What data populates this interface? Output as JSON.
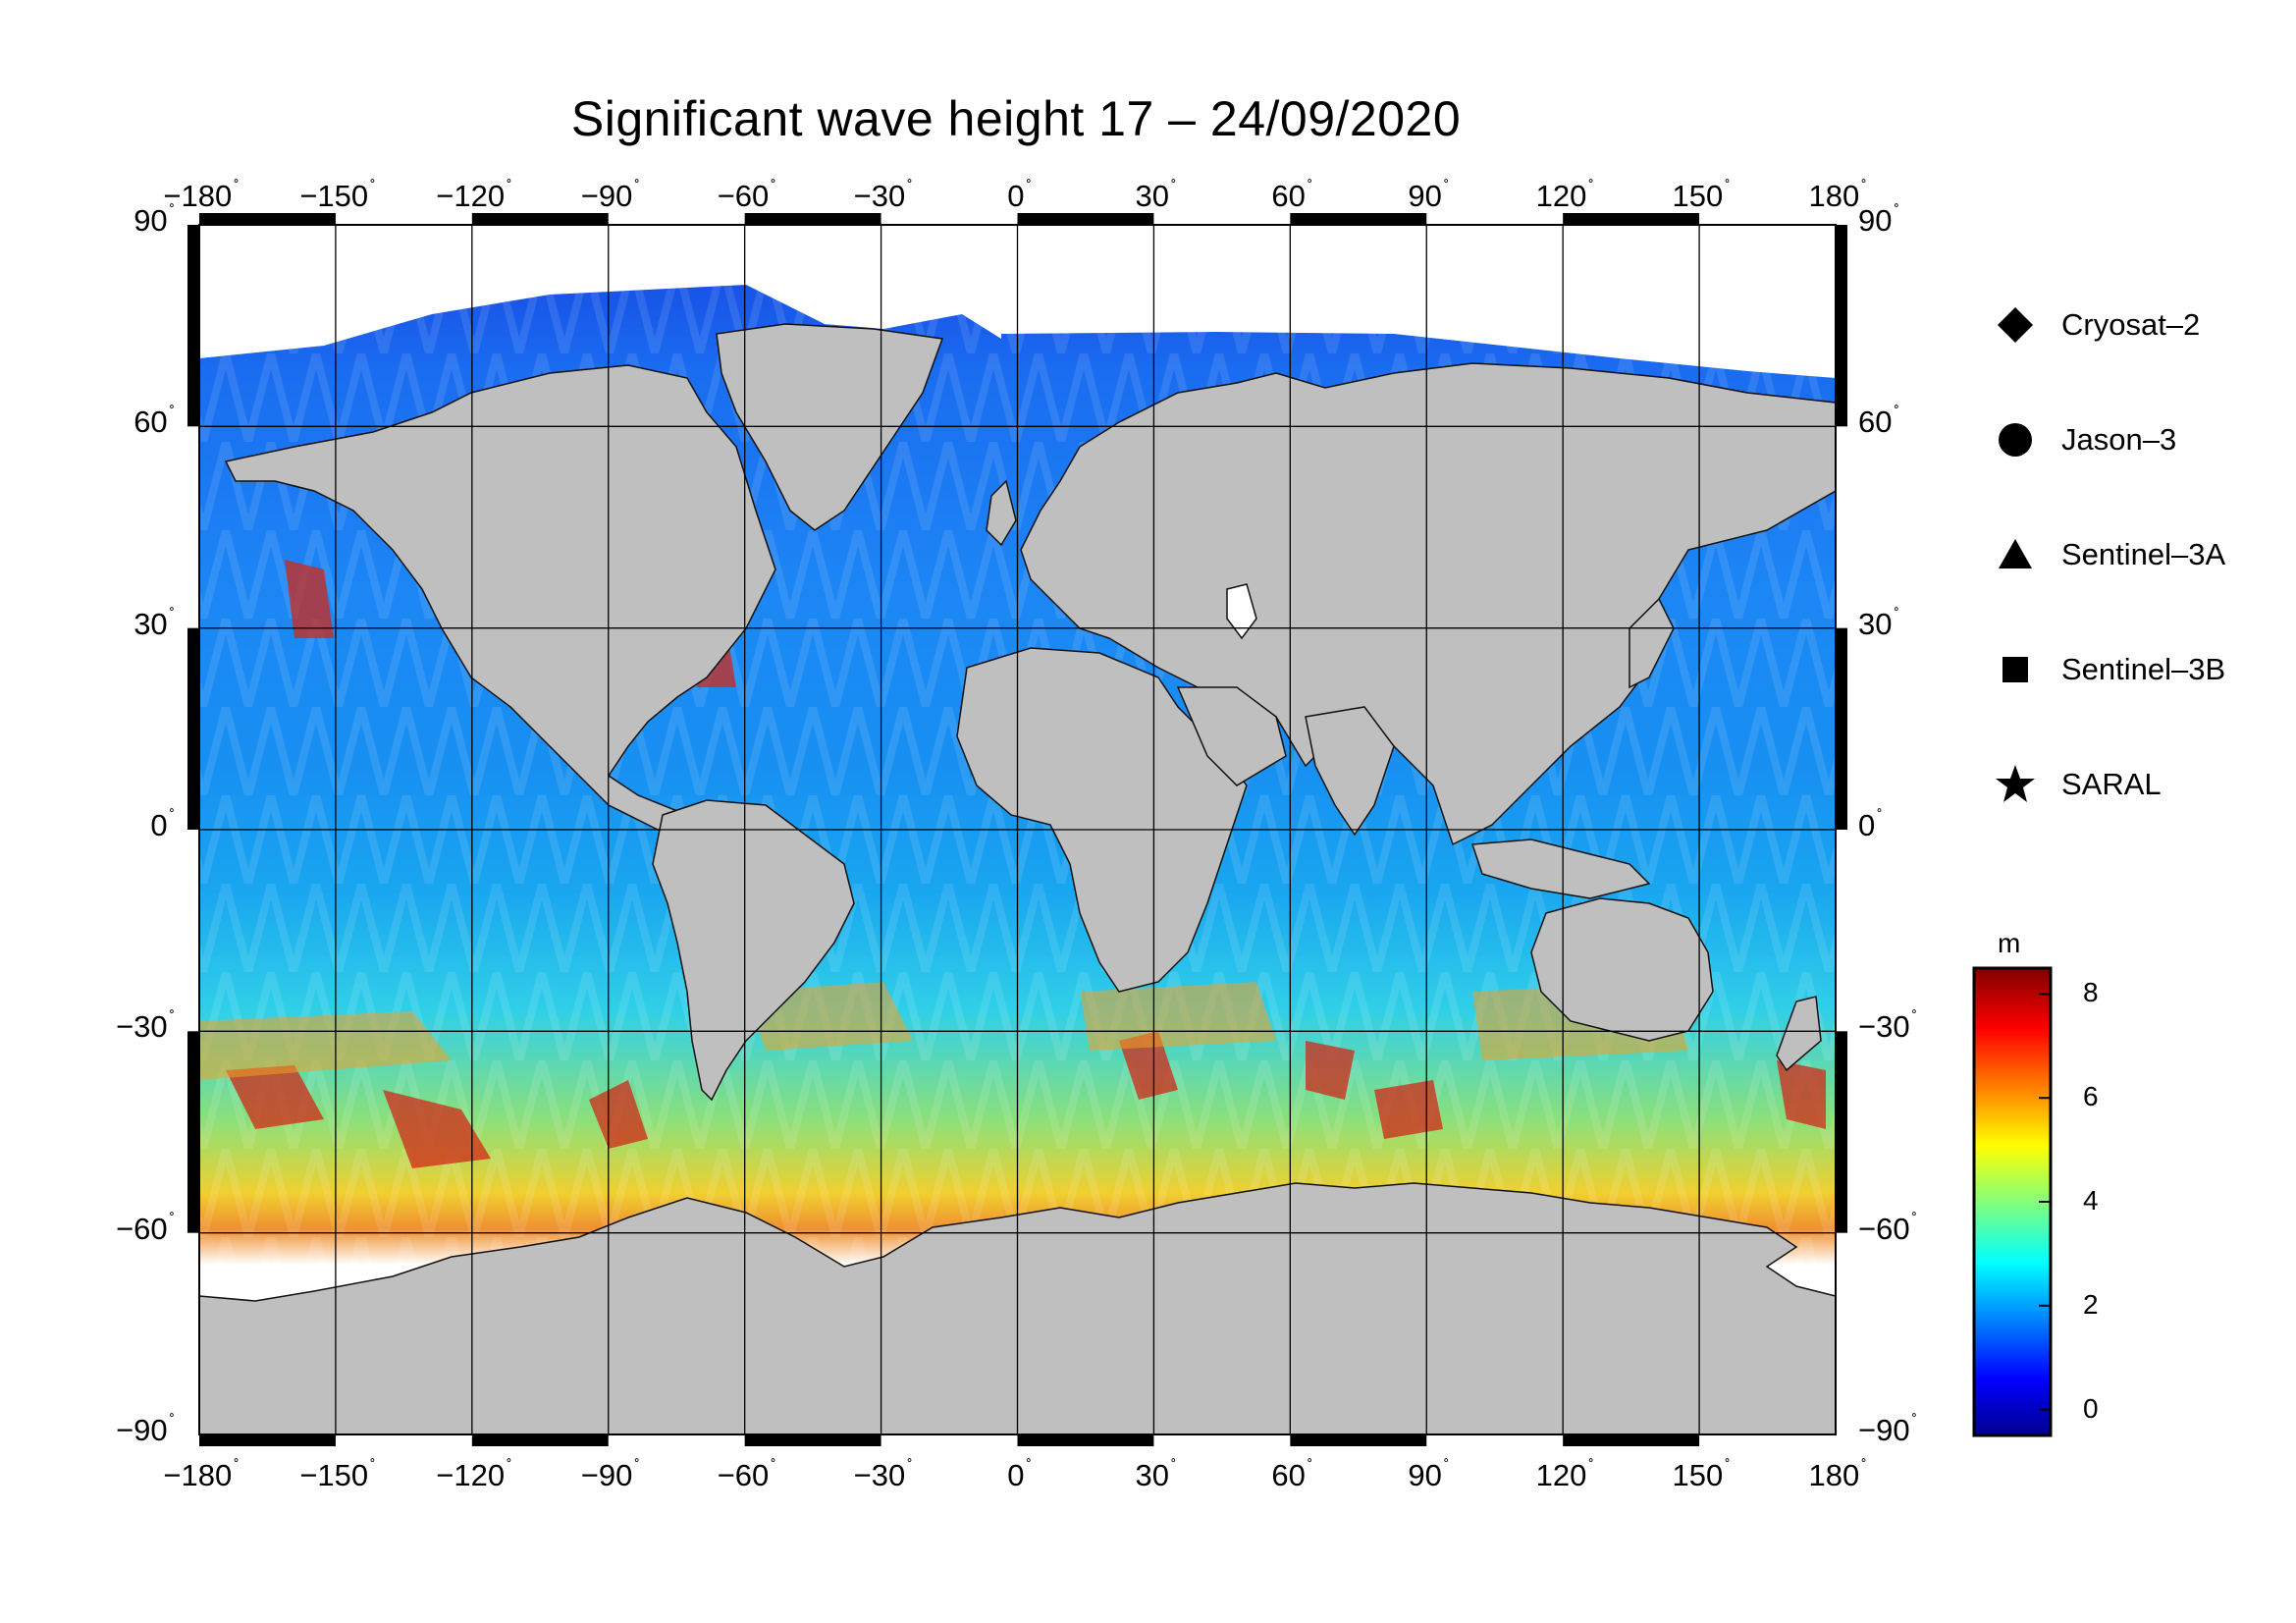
{
  "title": "Significant wave height 17 – 24/09/2020",
  "map": {
    "lon_ticks": [
      "−180",
      "−150",
      "−120",
      "−90",
      "−60",
      "−30",
      "0",
      "30",
      "60",
      "90",
      "120",
      "150",
      "180"
    ],
    "lat_ticks": [
      "90",
      "60",
      "30",
      "0",
      "−30",
      "−60",
      "−90"
    ],
    "degree_symbol": "˚",
    "land_color": "#bfbfbf",
    "ice_color": "#ffffff",
    "projection": "equirectangular",
    "graticule_spacing_deg": 30
  },
  "legend": {
    "items": [
      {
        "symbol": "diamond-icon",
        "label": "Cryosat–2"
      },
      {
        "symbol": "circle-icon",
        "label": "Jason–3"
      },
      {
        "symbol": "triangle-icon",
        "label": "Sentinel–3A"
      },
      {
        "symbol": "square-icon",
        "label": "Sentinel–3B"
      },
      {
        "symbol": "star-icon",
        "label": "SARAL"
      }
    ]
  },
  "colorbar": {
    "unit": "m",
    "min": -0.5,
    "max": 8.5,
    "tick_labels": [
      "8",
      "6",
      "4",
      "2",
      "0"
    ],
    "colormap": "jet"
  }
}
